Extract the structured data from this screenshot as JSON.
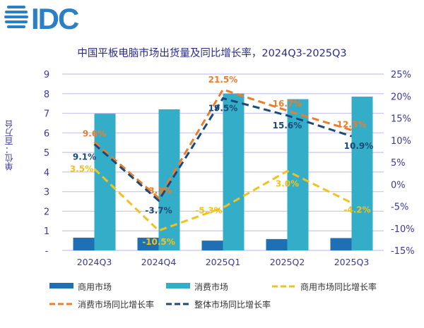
{
  "logo_text": "IDC",
  "chart_data": {
    "type": "bar+line",
    "title": "中国平板电脑市场出货量及同比增长率，2024Q3-2025Q3",
    "ylabel": "单位：百万台",
    "categories": [
      "2024Q3",
      "2024Q4",
      "2025Q1",
      "2025Q2",
      "2025Q3"
    ],
    "ylim": [
      0,
      9
    ],
    "y_ticks": [
      "-",
      "1",
      "2",
      "3",
      "4",
      "5",
      "6",
      "7",
      "8",
      "9"
    ],
    "y2lim": [
      -15,
      25
    ],
    "y2_ticks": [
      "-15%",
      "-10%",
      "-5%",
      "0%",
      "5%",
      "10%",
      "15%",
      "20%",
      "25%"
    ],
    "grid": true,
    "legend": "bottom",
    "bar_series": [
      {
        "name": "商用市场",
        "values": [
          0.65,
          0.65,
          0.5,
          0.58,
          0.63
        ],
        "color": "#1f6fb5"
      },
      {
        "name": "消费市场",
        "values": [
          6.98,
          7.2,
          8.0,
          7.72,
          7.85
        ],
        "color": "#34aec8"
      }
    ],
    "line_series": [
      {
        "name": "商用市场同比增长率",
        "values": [
          3.5,
          -10.5,
          -5.3,
          3.0,
          -4.2
        ],
        "labels": [
          "3.5%",
          "-10.5%",
          "-5.3%",
          "3.0%",
          "-4.2%"
        ],
        "color": "#f2c21b"
      },
      {
        "name": "消费市场同比增长率",
        "values": [
          9.6,
          -3.1,
          21.5,
          16.7,
          12.3
        ],
        "labels": [
          "9.6%",
          "-3.1%",
          "21.5%",
          "16.7%",
          "12.3%"
        ],
        "color": "#ee7d2b"
      },
      {
        "name": "整体市场同比增长率",
        "values": [
          9.1,
          -3.7,
          19.5,
          15.6,
          10.9
        ],
        "labels": [
          "9.1%",
          "-3.7%",
          "19.5%",
          "15.6%",
          "10.9%"
        ],
        "color": "#1b4a7a"
      }
    ]
  }
}
